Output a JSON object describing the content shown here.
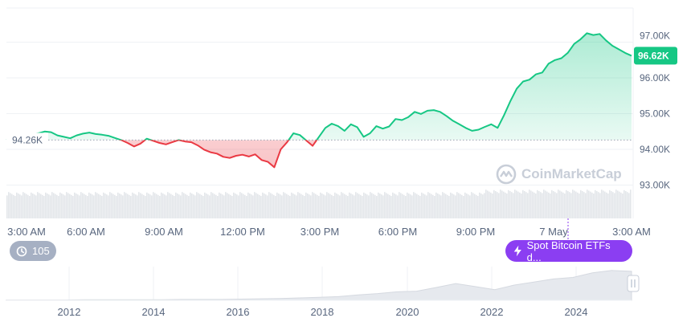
{
  "chart_data": {
    "type": "line",
    "y_ticks": [
      "97.00K",
      "96.00K",
      "95.00K",
      "94.00K",
      "93.00K"
    ],
    "y_tick_values": [
      97000,
      96000,
      95000,
      94000,
      93000
    ],
    "x_ticks": [
      "3:00 AM",
      "6:00 AM",
      "9:00 AM",
      "12:00 PM",
      "3:00 PM",
      "6:00 PM",
      "9:00 PM",
      "7 May",
      "3:00 AM"
    ],
    "ylim": [
      92800,
      97500
    ],
    "reference_price": 94260,
    "reference_label": "94.26K",
    "current_price": 96620,
    "current_label": "96.62K",
    "series": [
      {
        "values": [
          94260,
          94310,
          94340,
          94330,
          94420,
          94450,
          94500,
          94480,
          94390,
          94350,
          94310,
          94390,
          94440,
          94470,
          94430,
          94410,
          94380,
          94320,
          94260,
          94180,
          94080,
          94160,
          94300,
          94240,
          94180,
          94140,
          94200,
          94260,
          94220,
          94200,
          94110,
          93990,
          93920,
          93880,
          93790,
          93760,
          93820,
          93850,
          93800,
          93860,
          93700,
          93650,
          93500,
          94000,
          94200,
          94450,
          94400,
          94250,
          94100,
          94350,
          94600,
          94720,
          94650,
          94520,
          94700,
          94620,
          94350,
          94450,
          94650,
          94580,
          94640,
          94850,
          94820,
          94900,
          95050,
          94990,
          95080,
          95100,
          95050,
          94930,
          94800,
          94700,
          94600,
          94520,
          94550,
          94630,
          94700,
          94600,
          94950,
          95350,
          95700,
          95900,
          95950,
          96100,
          96150,
          96400,
          96500,
          96550,
          96700,
          96950,
          97080,
          97250,
          97200,
          97230,
          97050,
          96900,
          96800,
          96700,
          96620
        ],
        "color_up": "#16c784",
        "color_down": "#ea3943"
      }
    ],
    "overview": {
      "x_ticks": [
        "2012",
        "2014",
        "2016",
        "2018",
        "2020",
        "2022",
        "2024"
      ],
      "values": [
        0.01,
        0.01,
        0.01,
        0.01,
        0.02,
        0.02,
        0.02,
        0.02,
        0.02,
        0.03,
        0.03,
        0.03,
        0.04,
        0.05,
        0.06,
        0.08,
        0.1,
        0.12,
        0.18,
        0.22,
        0.28,
        0.3,
        0.42,
        0.55,
        0.45,
        0.35,
        0.5,
        0.6,
        0.7,
        0.75,
        0.9,
        0.98,
        0.95
      ]
    },
    "watermark": "CoinMarketCap"
  },
  "history_count": "105",
  "event_label": "Spot Bitcoin ETFs d...",
  "colors": {
    "up": "#16c784",
    "down": "#ea3943",
    "event": "#8b3ef2",
    "badge": "#a6b0c3"
  }
}
